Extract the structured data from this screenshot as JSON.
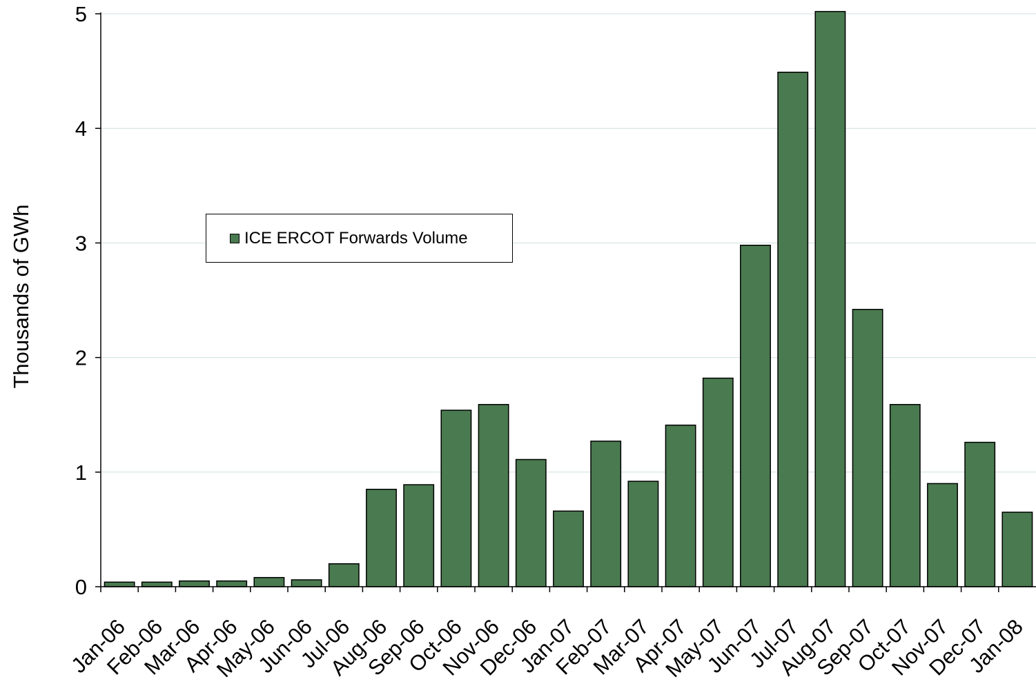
{
  "chart_data": {
    "type": "bar",
    "title": "",
    "xlabel": "",
    "ylabel": "Thousands of GWh",
    "ylim": [
      0,
      5
    ],
    "yticks": [
      0,
      1,
      2,
      3,
      4,
      5
    ],
    "grid": "horizontal",
    "legend_position": "upper-left",
    "bar_color": "#4a7a50",
    "categories": [
      "Jan-06",
      "Feb-06",
      "Mar-06",
      "Apr-06",
      "May-06",
      "Jun-06",
      "Jul-06",
      "Aug-06",
      "Sep-06",
      "Oct-06",
      "Nov-06",
      "Dec-06",
      "Jan-07",
      "Feb-07",
      "Mar-07",
      "Apr-07",
      "May-07",
      "Jun-07",
      "Jul-07",
      "Aug-07",
      "Sep-07",
      "Oct-07",
      "Nov-07",
      "Dec-07",
      "Jan-08"
    ],
    "series": [
      {
        "name": "ICE ERCOT Forwards Volume",
        "values": [
          0.04,
          0.04,
          0.05,
          0.05,
          0.08,
          0.06,
          0.2,
          0.85,
          0.89,
          1.54,
          1.59,
          1.11,
          0.66,
          1.27,
          0.92,
          1.41,
          1.82,
          2.98,
          4.49,
          5.02,
          2.42,
          1.59,
          0.9,
          1.26,
          0.65
        ]
      }
    ]
  }
}
